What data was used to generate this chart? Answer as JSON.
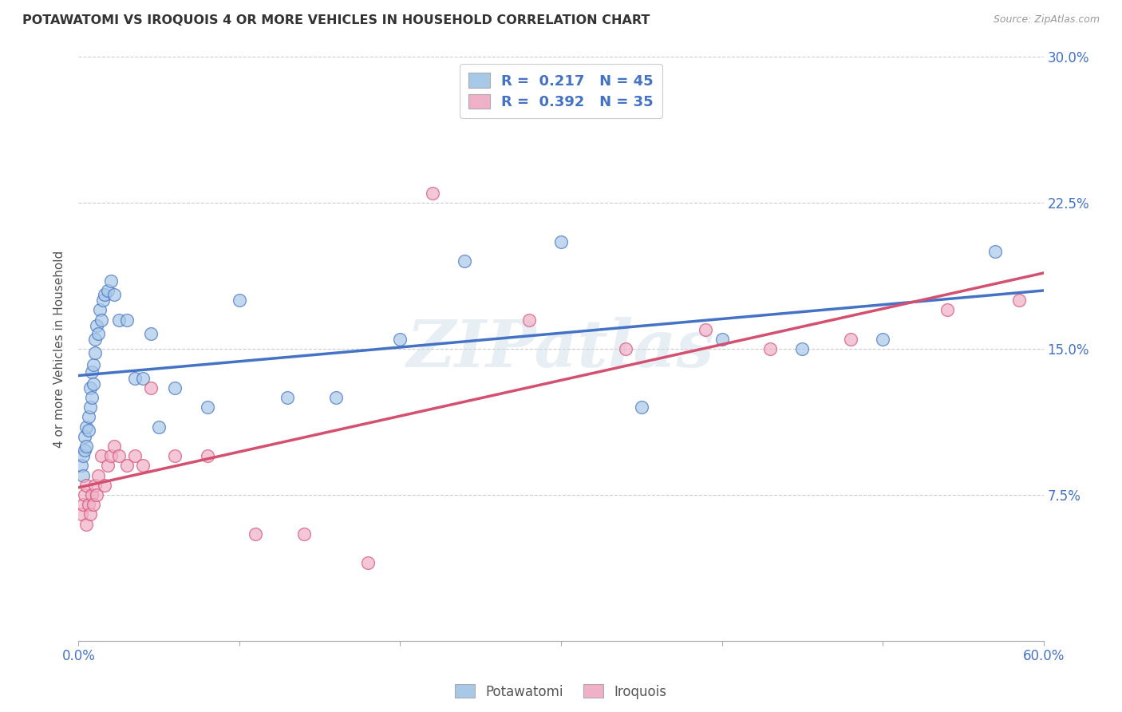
{
  "title": "POTAWATOMI VS IROQUOIS 4 OR MORE VEHICLES IN HOUSEHOLD CORRELATION CHART",
  "source": "Source: ZipAtlas.com",
  "ylabel": "4 or more Vehicles in Household",
  "x_min": 0.0,
  "x_max": 0.6,
  "y_min": 0.0,
  "y_max": 0.3,
  "x_ticks": [
    0.0,
    0.1,
    0.2,
    0.3,
    0.4,
    0.5,
    0.6
  ],
  "x_tick_labels": [
    "0.0%",
    "",
    "",
    "",
    "",
    "",
    "60.0%"
  ],
  "y_ticks": [
    0.0,
    0.075,
    0.15,
    0.225,
    0.3
  ],
  "y_tick_labels_right": [
    "",
    "7.5%",
    "15.0%",
    "22.5%",
    "30.0%"
  ],
  "watermark": "ZIPatlas",
  "legend_R_blue": "0.217",
  "legend_N_blue": "45",
  "legend_R_pink": "0.392",
  "legend_N_pink": "35",
  "blue_color": "#a8c8e8",
  "pink_color": "#f0b0c8",
  "blue_line_color": "#4472c4",
  "pink_line_color": "#d45070",
  "potawatomi_x": [
    0.002,
    0.003,
    0.003,
    0.004,
    0.004,
    0.005,
    0.005,
    0.006,
    0.006,
    0.007,
    0.007,
    0.008,
    0.008,
    0.009,
    0.009,
    0.01,
    0.01,
    0.011,
    0.012,
    0.013,
    0.014,
    0.015,
    0.016,
    0.018,
    0.02,
    0.022,
    0.025,
    0.03,
    0.035,
    0.04,
    0.045,
    0.05,
    0.06,
    0.08,
    0.1,
    0.13,
    0.16,
    0.2,
    0.24,
    0.3,
    0.35,
    0.4,
    0.45,
    0.5,
    0.57
  ],
  "potawatomi_y": [
    0.09,
    0.095,
    0.085,
    0.105,
    0.098,
    0.11,
    0.1,
    0.115,
    0.108,
    0.12,
    0.13,
    0.125,
    0.138,
    0.142,
    0.132,
    0.148,
    0.155,
    0.162,
    0.158,
    0.17,
    0.165,
    0.175,
    0.178,
    0.18,
    0.185,
    0.178,
    0.165,
    0.165,
    0.135,
    0.135,
    0.158,
    0.11,
    0.13,
    0.12,
    0.175,
    0.125,
    0.125,
    0.155,
    0.195,
    0.205,
    0.12,
    0.155,
    0.15,
    0.155,
    0.2
  ],
  "iroquois_x": [
    0.002,
    0.003,
    0.004,
    0.005,
    0.005,
    0.006,
    0.007,
    0.008,
    0.009,
    0.01,
    0.011,
    0.012,
    0.014,
    0.016,
    0.018,
    0.02,
    0.022,
    0.025,
    0.03,
    0.035,
    0.04,
    0.045,
    0.06,
    0.08,
    0.11,
    0.14,
    0.18,
    0.22,
    0.28,
    0.34,
    0.39,
    0.43,
    0.48,
    0.54,
    0.585
  ],
  "iroquois_y": [
    0.065,
    0.07,
    0.075,
    0.06,
    0.08,
    0.07,
    0.065,
    0.075,
    0.07,
    0.08,
    0.075,
    0.085,
    0.095,
    0.08,
    0.09,
    0.095,
    0.1,
    0.095,
    0.09,
    0.095,
    0.09,
    0.13,
    0.095,
    0.095,
    0.055,
    0.055,
    0.04,
    0.23,
    0.165,
    0.15,
    0.16,
    0.15,
    0.155,
    0.17,
    0.175
  ]
}
